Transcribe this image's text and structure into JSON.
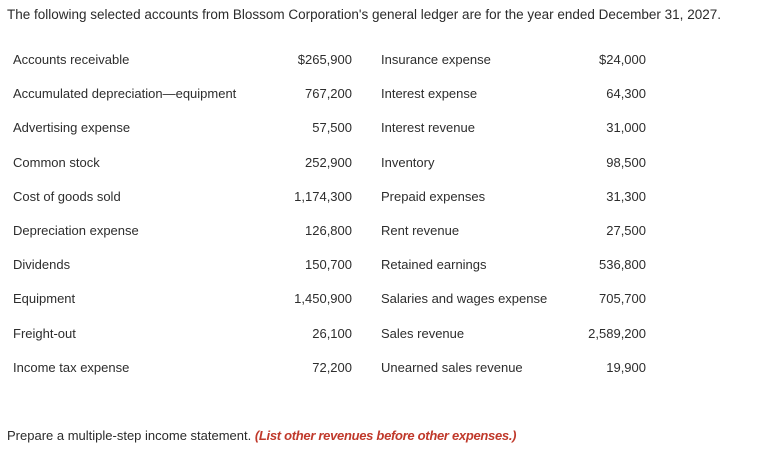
{
  "intro": "The following selected accounts from Blossom Corporation's general ledger are for the year ended December 31, 2027.",
  "accounts": [
    {
      "left_name": "Accounts receivable",
      "left_amount": "$265,900",
      "right_name": "Insurance expense",
      "right_amount": "$24,000"
    },
    {
      "left_name": "Accumulated depreciation—equipment",
      "left_amount": "767,200",
      "right_name": "Interest expense",
      "right_amount": "64,300"
    },
    {
      "left_name": "Advertising expense",
      "left_amount": "57,500",
      "right_name": "Interest revenue",
      "right_amount": "31,000"
    },
    {
      "left_name": "Common stock",
      "left_amount": "252,900",
      "right_name": "Inventory",
      "right_amount": "98,500"
    },
    {
      "left_name": "Cost of goods sold",
      "left_amount": "1,174,300",
      "right_name": "Prepaid expenses",
      "right_amount": "31,300"
    },
    {
      "left_name": "Depreciation expense",
      "left_amount": "126,800",
      "right_name": "Rent revenue",
      "right_amount": "27,500"
    },
    {
      "left_name": "Dividends",
      "left_amount": "150,700",
      "right_name": "Retained earnings",
      "right_amount": "536,800"
    },
    {
      "left_name": "Equipment",
      "left_amount": "1,450,900",
      "right_name": "Salaries and wages expense",
      "right_amount": "705,700"
    },
    {
      "left_name": "Freight-out",
      "left_amount": "26,100",
      "right_name": "Sales revenue",
      "right_amount": "2,589,200"
    },
    {
      "left_name": "Income tax expense",
      "left_amount": "72,200",
      "right_name": "Unearned sales revenue",
      "right_amount": "19,900"
    }
  ],
  "prompt": {
    "text": "Prepare a multiple-step income statement.",
    "note": "(List other revenues before other expenses.)"
  }
}
